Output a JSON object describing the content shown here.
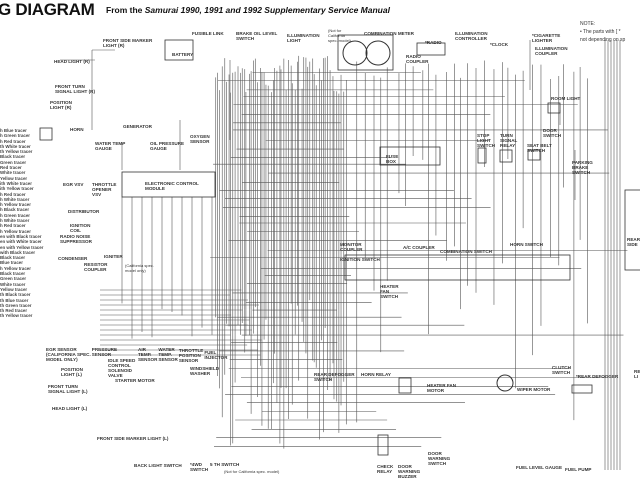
{
  "header": {
    "title": "G DIAGRAM",
    "subtitle_prefix": "From the ",
    "subtitle_italic": "Samurai 1990, 1991 and 1992 Supplementary Service Manual"
  },
  "note": {
    "heading": "NOTE:",
    "line1": "• The parts with [ * ",
    "line2": "not depending on sp"
  },
  "legend": [
    "h Blue tracer",
    "h Green tracer",
    "h Red tracer",
    "th White tracer",
    "th Yellow tracer",
    "Black tracer",
    "Green tracer",
    "Red tracer",
    "White tracer",
    "Yellow tracer",
    "ith White tracer",
    "ith Yellow tracer",
    "h Red tracer",
    "h White tracer",
    "h Yellow tracer",
    "h Black tracer",
    "h Green tracer",
    "h White tracer",
    "h Red tracer",
    "h Yellow tracer",
    "en with Black tracer",
    "en with White tracer",
    "en with Yellow tracer",
    "with Black tracer",
    "Black tracer",
    "Blue tracer",
    "h Yellow tracer",
    "Black tracer",
    "Green tracer",
    "White tracer",
    "Yellow tracer",
    "th Black tracer",
    "th Blue tracer",
    "th Green tracer",
    "th Red tracer",
    "th Yellow tracer"
  ],
  "components": {
    "front_side_marker_r": "FRONT SIDE MARKER\nLIGHT (R)",
    "fusible_link": "FUSIBLE LINK",
    "battery": "BATTERY",
    "brake_oil": "BRAKE OIL LEVEL\nSWITCH",
    "illumination_light": "ILLUMINATION\nLIGHT",
    "not_california_1": "(Not for\nCalifornia\nspec. model)",
    "combination_meter": "COMBINATION METER",
    "radio": "*RADIO",
    "radio_coupler": "RADIO\nCOUPLER",
    "illumination_controller": "ILLUMINATION\nCONTROLLER",
    "clock": "*CLOCK",
    "cigarette_lighter": "*CIGARETTE\nLIGHTER",
    "illumination_coupler": "ILLUMINATION\nCOUPLER",
    "head_light_r": "HEAD LIGHT (R)",
    "front_turn_r": "FRONT TURN\nSIGNAL LIGHT (R)",
    "position_light_r": "POSITION\nLIGHT (R)",
    "horn": "HORN",
    "generator": "GENERATOR",
    "water_temp_gauge": "WATER TEMP\nGAUGE",
    "oil_pressure_gauge": "OIL PRESSURE\nGAUGE",
    "oxygen_sensor": "OXYGEN\nSENSOR",
    "room_light": "ROOM LIGHT",
    "door_switch": "DOOR\nSWITCH",
    "stop_light_switch": "STOP\nLIGHT\nSWITCH",
    "turn_signal_relay": "TURN\nSIGNAL\nRELAY",
    "seat_belt_switch": "SEAT BELT\nSWITCH",
    "parking_brake_switch": "PARKING\nBRAKE\nSWITCH",
    "fuse_box": "FUSE\nBOX",
    "ecm": "ELECTRONIC CONTROL\nMODULE",
    "egr_vsv": "EGR VSV",
    "throttle_opener": "THROTTLE\nOPENER\nVSV",
    "distributor": "DISTRIBUTOR",
    "ignition_coil": "IGNITION\nCOIL",
    "radio_noise": "RADIO NOISE\nSUPPRESSOR",
    "condenser": "CONDENSER",
    "igniter": "IGNITER",
    "resistor_coupler": "RESISTOR\nCOUPLER",
    "california_only": "(California spec.\nmodel only)",
    "monitor_coupler": "MONITOR\nCOUPLER",
    "ac_coupler": "A/C COUPLER",
    "combination_switch": "COMBINATION SWITCH",
    "horn_switch": "HORN SWITCH",
    "ignition_switch": "IGNITION SWITCH",
    "heater_fan_switch": "HEATER\nFAN\nSWITCH",
    "egr_sensor": "EGR SENSOR\n(California spec.\nmodel only)",
    "pressure_sensor": "PRESSURE\nSENSOR",
    "isc_valve": "IDLE SPEED\nCONTROL\nSOLENOID\nVALVE",
    "air_temp_sensor": "AIR\nTEMP.\nSENSOR",
    "water_temp_sensor": "WATER\nTEMP.\nSENSOR",
    "throttle_position_sensor": "THROTTLE\nPOSITION\nSENSOR",
    "fuel_injector": "FUEL\nINJECTOR",
    "windshield_washer": "WINDSHIELD\nWASHER",
    "starter_motor": "STARTER MOTOR",
    "position_light_l": "POSITION\nLIGHT (L)",
    "front_turn_l": "FRONT TURN\nSIGNAL LIGHT (L)",
    "head_light_l": "HEAD LIGHT (L)",
    "front_side_marker_l": "FRONT SIDE MARKER LIGHT (L)",
    "back_light_switch": "BACK LIGHT SWITCH",
    "4wd_switch": "*4WD\nSWITCH",
    "5th_switch": "5 TH SWITCH",
    "not_california_2": "(Not for California spec. model)",
    "rear_defogger_switch": "REAR DEFOGGER\nSWITCH",
    "horn_relay": "HORN RELAY",
    "heater_fan_motor": "HEATER FAN\nMOTOR",
    "wiper_motor": "WIPER MOTOR",
    "clutch_switch": "CLUTCH\nSWITCH",
    "rear_defogger": "*REAR DEFOGGER",
    "check_relay": "CHECK\nRELAY",
    "door_warning_buzzer": "DOOR\nWARNING\nBUZZER",
    "door_warning_switch": "DOOR\nWARNING\nSWITCH",
    "fuel_level_gauge": "FUEL LEVEL GAUGE",
    "fuel_pump": "FUEL PUMP",
    "rear_side": "REAR\nSIDE",
    "rear_li": "RE\nLI"
  }
}
